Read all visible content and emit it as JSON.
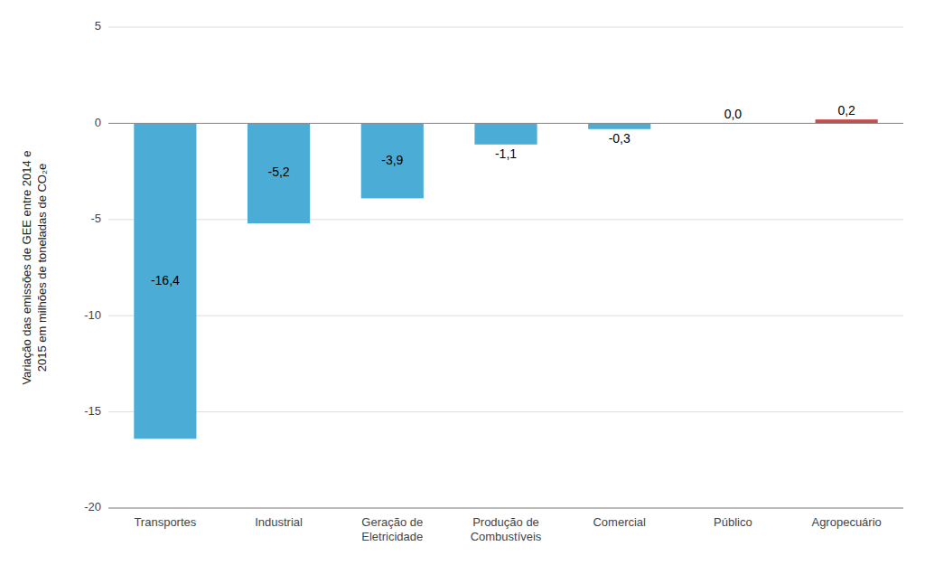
{
  "chart_data": {
    "type": "bar",
    "y_label": "Variação das emissões de GEE entre 2014 e\n2015 em milhões de toneladas de CO₂e",
    "categories": [
      "Transportes",
      "Industrial",
      "Geração de\nEletricidade",
      "Produção de\nCombustíveis",
      "Comercial",
      "Público",
      "Agropecuário"
    ],
    "values": [
      -16.4,
      -5.2,
      -3.9,
      -1.1,
      -0.3,
      0.0,
      0.2
    ],
    "value_labels": [
      "-16,4",
      "-5,2",
      "-3,9",
      "-1,1",
      "-0,3",
      "0,0",
      "0,2"
    ],
    "colors": [
      "#4BACD6",
      "#4BACD6",
      "#4BACD6",
      "#4BACD6",
      "#4BACD6",
      "#4BACD6",
      "#C0504D"
    ],
    "ylim": [
      -20,
      5
    ],
    "yticks": [
      -20,
      -15,
      -10,
      -5,
      0,
      5
    ],
    "grid": true,
    "data_labels": true
  }
}
